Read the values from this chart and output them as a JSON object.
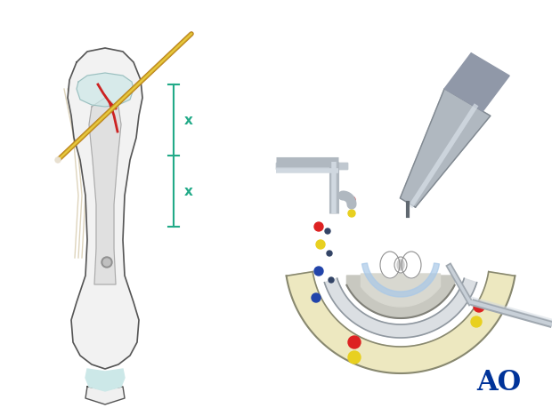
{
  "bg_color": "#ffffff",
  "bone_outline_color": "#555555",
  "bone_fill_color": "#f0f0f0",
  "bone_inner_color": "#e8e8e8",
  "cartilage_color": "#b8d8d8",
  "cartilage_fill": "#cce8e8",
  "fracture_color": "#cc2222",
  "drill_wire_color": "#c8a020",
  "drill_wire_highlight": "#e8c840",
  "measure_color": "#22aa88",
  "measure_x_label": "x",
  "bone_shadow_color": "#d4c8b0",
  "yellow_fill": "#e8d840",
  "skin_outer_color": "#e8d8a0",
  "skin_fill": "#ede8c0",
  "drill_body_color": "#a0a8b0",
  "drill_highlight": "#d0d8e0",
  "drill_dark": "#808890",
  "wire_gray": "#b0b8c0",
  "ao_color": "#003399",
  "red_dot": "#dd2222",
  "yellow_dot": "#e8d020",
  "blue_dot": "#2244aa",
  "bone_condyle_color": "#d8d0c0",
  "bone_condyle_fill": "#e8e0d0",
  "ligament_color": "#c8b890"
}
